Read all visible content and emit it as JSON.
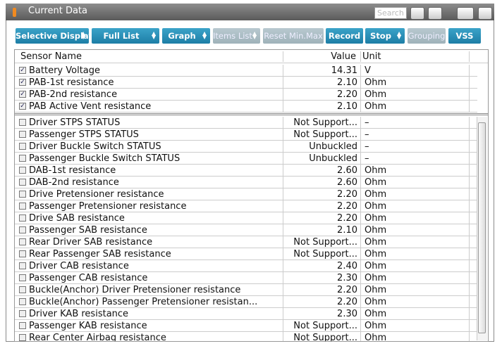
{
  "title": "Current Data",
  "search_placeholder": "Search",
  "toolbar": {
    "buttons": [
      {
        "label": "Selective Display",
        "dropdown": true,
        "enabled": true
      },
      {
        "label": "Full List",
        "dropdown": true,
        "enabled": true
      },
      {
        "label": "Graph",
        "dropdown": true,
        "enabled": true
      },
      {
        "label": "Items List",
        "dropdown": true,
        "enabled": false
      },
      {
        "label": "Reset Min.Max",
        "dropdown": false,
        "enabled": false
      },
      {
        "label": "Record",
        "dropdown": false,
        "enabled": true
      },
      {
        "label": "Stop",
        "dropdown": true,
        "enabled": true
      },
      {
        "label": "Grouping",
        "dropdown": false,
        "enabled": false
      },
      {
        "label": "VSS",
        "dropdown": false,
        "enabled": true
      }
    ]
  },
  "table": {
    "columns": [
      "Sensor Name",
      "Value",
      "Unit"
    ],
    "pinned_rows": [
      {
        "name": "Battery Voltage",
        "value": "14.31",
        "unit": "V",
        "checked": true
      },
      {
        "name": "PAB-1st resistance",
        "value": "2.10",
        "unit": "Ohm",
        "checked": true
      },
      {
        "name": "PAB-2nd resistance",
        "value": "2.20",
        "unit": "Ohm",
        "checked": true
      },
      {
        "name": "PAB Active Vent resistance",
        "value": "2.10",
        "unit": "Ohm",
        "checked": true
      }
    ],
    "rows": [
      {
        "name": "Driver STPS STATUS",
        "value": "Not Support...",
        "unit": "–",
        "checked": false
      },
      {
        "name": "Passenger STPS STATUS",
        "value": "Not Support...",
        "unit": "–",
        "checked": false
      },
      {
        "name": "Driver Buckle Switch STATUS",
        "value": "Unbuckled",
        "unit": "–",
        "checked": false
      },
      {
        "name": "Passenger Buckle Switch STATUS",
        "value": "Unbuckled",
        "unit": "–",
        "checked": false
      },
      {
        "name": "DAB-1st resistance",
        "value": "2.60",
        "unit": "Ohm",
        "checked": false
      },
      {
        "name": "DAB-2nd resistance",
        "value": "2.60",
        "unit": "Ohm",
        "checked": false
      },
      {
        "name": "Drive Pretensioner resistance",
        "value": "2.20",
        "unit": "Ohm",
        "checked": false
      },
      {
        "name": "Passenger Pretensioner resistance",
        "value": "2.20",
        "unit": "Ohm",
        "checked": false
      },
      {
        "name": "Drive SAB resistance",
        "value": "2.20",
        "unit": "Ohm",
        "checked": false
      },
      {
        "name": "Passenger SAB resistance",
        "value": "2.10",
        "unit": "Ohm",
        "checked": false
      },
      {
        "name": "Rear Driver SAB resistance",
        "value": "Not Support...",
        "unit": "Ohm",
        "checked": false
      },
      {
        "name": "Rear Passenger SAB resistance",
        "value": "Not Support...",
        "unit": "Ohm",
        "checked": false
      },
      {
        "name": "Driver CAB resistance",
        "value": "2.40",
        "unit": "Ohm",
        "checked": false
      },
      {
        "name": "Passenger CAB resistance",
        "value": "2.30",
        "unit": "Ohm",
        "checked": false
      },
      {
        "name": "Buckle(Anchor) Driver Pretensioner resistance",
        "value": "2.20",
        "unit": "Ohm",
        "checked": false
      },
      {
        "name": "Buckle(Anchor) Passenger Pretensioner resistan...",
        "value": "2.20",
        "unit": "Ohm",
        "checked": false
      },
      {
        "name": "Driver KAB resistance",
        "value": "2.30",
        "unit": "Ohm",
        "checked": false
      },
      {
        "name": "Passenger KAB resistance",
        "value": "Not Support...",
        "unit": "Ohm",
        "checked": false
      },
      {
        "name": "Rear Center Airbag resistance",
        "value": "Not Support...",
        "unit": "Ohm",
        "checked": false
      }
    ]
  }
}
